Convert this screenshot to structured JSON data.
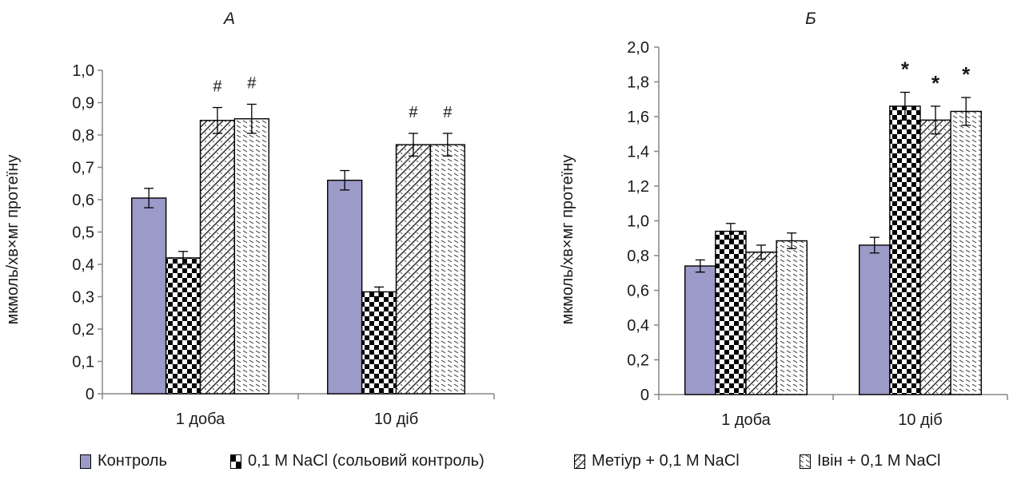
{
  "colors": {
    "control": "#9b9ac9",
    "axis": "#868686",
    "bar_edge": "#000000",
    "text": "#1a1a1a"
  },
  "legend": [
    {
      "label": "Контроль",
      "pattern": "solid"
    },
    {
      "label": "0,1 М NaCl (сольовий контроль)",
      "pattern": "checker"
    },
    {
      "label": "Метіур + 0,1 М NaCl",
      "pattern": "diag"
    },
    {
      "label": "Івін + 0,1 М NaCl",
      "pattern": "dash"
    }
  ],
  "chart_data": [
    {
      "type": "bar",
      "title": "А",
      "ylabel": "мкмоль/хв×мг протеїну",
      "xlabel": "",
      "categories": [
        "1 доба",
        "10 діб"
      ],
      "ylim": [
        0,
        1.0
      ],
      "yticks": [
        "0",
        "0,1",
        "0,2",
        "0,3",
        "0,4",
        "0,5",
        "0,6",
        "0,7",
        "0,8",
        "0,9",
        "1,0"
      ],
      "series": [
        {
          "name": "Контроль",
          "values": [
            0.605,
            0.66
          ],
          "errors": [
            0.03,
            0.03
          ],
          "marks": [
            "",
            ""
          ]
        },
        {
          "name": "0,1 М NaCl (сольовий контроль)",
          "values": [
            0.42,
            0.315
          ],
          "errors": [
            0.02,
            0.015
          ],
          "marks": [
            "",
            ""
          ]
        },
        {
          "name": "Метіур + 0,1 М NaCl",
          "values": [
            0.845,
            0.77
          ],
          "errors": [
            0.04,
            0.035
          ],
          "marks": [
            "#",
            "#"
          ]
        },
        {
          "name": "Івін + 0,1 М NaCl",
          "values": [
            0.85,
            0.77
          ],
          "errors": [
            0.045,
            0.035
          ],
          "marks": [
            "#",
            "#"
          ]
        }
      ],
      "grid": false
    },
    {
      "type": "bar",
      "title": "Б",
      "ylabel": "мкмоль/хв×мг протеїну",
      "xlabel": "",
      "categories": [
        "1 доба",
        "10 діб"
      ],
      "ylim": [
        0,
        2.0
      ],
      "yticks": [
        "0",
        "0,2",
        "0,4",
        "0,6",
        "0,8",
        "1,0",
        "1,2",
        "1,4",
        "1,6",
        "1,8",
        "2,0"
      ],
      "series": [
        {
          "name": "Контроль",
          "values": [
            0.74,
            0.86
          ],
          "errors": [
            0.035,
            0.045
          ],
          "marks": [
            "",
            ""
          ]
        },
        {
          "name": "0,1 М NaCl (сольовий контроль)",
          "values": [
            0.94,
            1.66
          ],
          "errors": [
            0.045,
            0.08
          ],
          "marks": [
            "",
            "*"
          ]
        },
        {
          "name": "Метіур + 0,1 М NaCl",
          "values": [
            0.82,
            1.58
          ],
          "errors": [
            0.04,
            0.08
          ],
          "marks": [
            "",
            "*"
          ]
        },
        {
          "name": "Івін + 0,1 М NaCl",
          "values": [
            0.885,
            1.63
          ],
          "errors": [
            0.045,
            0.08
          ],
          "marks": [
            "",
            "*"
          ]
        }
      ],
      "grid": false
    }
  ]
}
